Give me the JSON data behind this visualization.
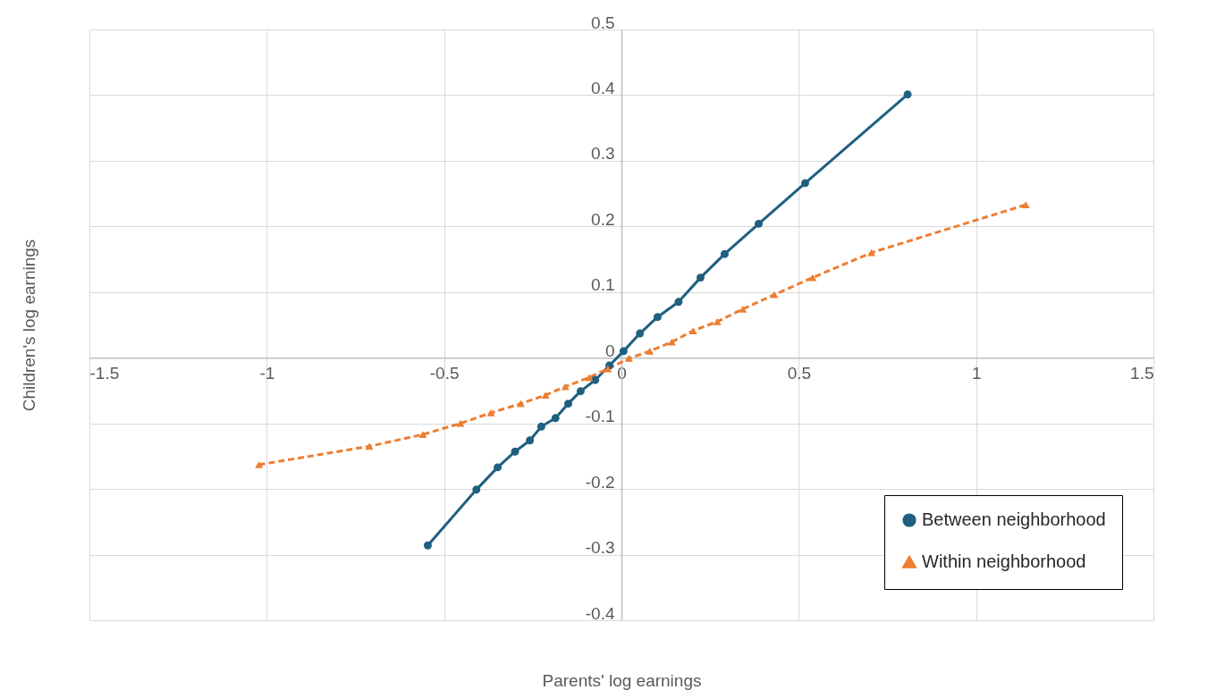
{
  "chart_data": {
    "type": "line",
    "xlabel": "Parents' log earnings",
    "ylabel": "Children's log earnings",
    "xlim": [
      -1.5,
      1.5
    ],
    "ylim": [
      -0.4,
      0.5
    ],
    "xticks": [
      -1.5,
      -1,
      -0.5,
      0,
      0.5,
      1,
      1.5
    ],
    "yticks": [
      -0.4,
      -0.3,
      -0.2,
      -0.1,
      0,
      0.1,
      0.2,
      0.3,
      0.4,
      0.5
    ],
    "grid": true,
    "legend": "bottom right",
    "series": [
      {
        "name": "Between neighborhood",
        "color": "#1f5f80",
        "marker": "circle",
        "line_style": "solid",
        "x": [
          -0.546,
          -0.409,
          -0.349,
          -0.3,
          -0.258,
          -0.226,
          -0.186,
          -0.15,
          -0.115,
          -0.074,
          -0.034,
          0.006,
          0.052,
          0.102,
          0.161,
          0.223,
          0.291,
          0.387,
          0.518,
          0.807
        ],
        "values": [
          -0.286,
          -0.201,
          -0.167,
          -0.143,
          -0.126,
          -0.105,
          -0.092,
          -0.07,
          -0.051,
          -0.034,
          -0.012,
          0.01,
          0.037,
          0.062,
          0.085,
          0.122,
          0.158,
          0.204,
          0.266,
          0.401
        ]
      },
      {
        "name": "Within neighborhood",
        "color": "#ed7d31",
        "marker": "triangle",
        "line_style": "dashed",
        "x": [
          -1.022,
          -0.711,
          -0.56,
          -0.454,
          -0.368,
          -0.284,
          -0.214,
          -0.158,
          -0.091,
          -0.038,
          0.021,
          0.08,
          0.142,
          0.202,
          0.27,
          0.342,
          0.431,
          0.539,
          0.705,
          1.14
        ],
        "values": [
          -0.163,
          -0.135,
          -0.117,
          -0.1,
          -0.084,
          -0.07,
          -0.057,
          -0.044,
          -0.03,
          -0.017,
          -0.001,
          0.01,
          0.024,
          0.041,
          0.055,
          0.074,
          0.096,
          0.122,
          0.16,
          0.233
        ]
      }
    ]
  }
}
